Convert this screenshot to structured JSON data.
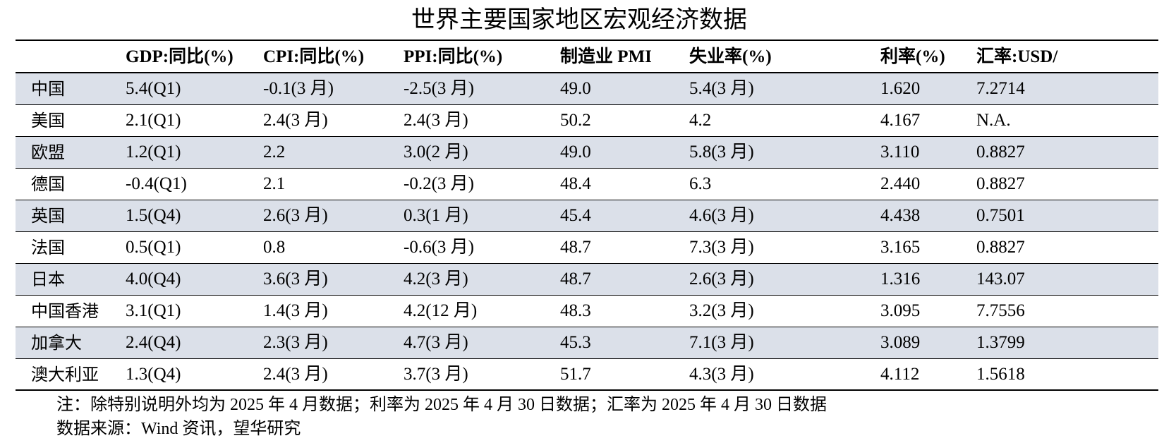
{
  "title": "世界主要国家地区宏观经济数据",
  "headers": [
    "",
    "GDP:同比(%)",
    "CPI:同比(%)",
    "PPI:同比(%)",
    "制造业 PMI",
    "失业率(%)",
    "利率(%)",
    "汇率:USD/"
  ],
  "rows": [
    [
      "中国",
      "5.4(Q1)",
      "-0.1(3 月)",
      "-2.5(3 月)",
      "49.0",
      "5.4(3 月)",
      "1.620",
      "7.2714"
    ],
    [
      "美国",
      "2.1(Q1)",
      "2.4(3 月)",
      "2.4(3 月)",
      "50.2",
      "4.2",
      "4.167",
      "N.A."
    ],
    [
      "欧盟",
      "1.2(Q1)",
      "2.2",
      "3.0(2 月)",
      "49.0",
      "5.8(3 月)",
      "3.110",
      "0.8827"
    ],
    [
      "德国",
      "-0.4(Q1)",
      "2.1",
      "-0.2(3 月)",
      "48.4",
      "6.3",
      "2.440",
      "0.8827"
    ],
    [
      "英国",
      "1.5(Q4)",
      "2.6(3 月)",
      "0.3(1 月)",
      "45.4",
      "4.6(3 月)",
      "4.438",
      "0.7501"
    ],
    [
      "法国",
      "0.5(Q1)",
      "0.8",
      "-0.6(3 月)",
      "48.7",
      "7.3(3 月)",
      "3.165",
      "0.8827"
    ],
    [
      "日本",
      "4.0(Q4)",
      "3.6(3 月)",
      "4.2(3 月)",
      "48.7",
      "2.6(3 月)",
      "1.316",
      "143.07"
    ],
    [
      "中国香港",
      "3.1(Q1)",
      "1.4(3 月)",
      "4.2(12 月)",
      "48.3",
      "3.2(3 月)",
      "3.095",
      "7.7556"
    ],
    [
      "加拿大",
      "2.4(Q4)",
      "2.3(3 月)",
      "4.7(3 月)",
      "45.3",
      "7.1(3 月)",
      "3.089",
      "1.3799"
    ],
    [
      "澳大利亚",
      "1.3(Q4)",
      "2.4(3 月)",
      "3.7(3 月)",
      "51.7",
      "4.3(3 月)",
      "4.112",
      "1.5618"
    ]
  ],
  "note": "注：除特别说明外均为 2025 年 4 月数据；利率为 2025 年 4 月 30 日数据；汇率为 2025 年 4 月 30 日数据",
  "source": "数据来源：Wind 资讯，望华研究",
  "colors": {
    "row_shade": "#dbe0e9",
    "rule": "#000000"
  }
}
